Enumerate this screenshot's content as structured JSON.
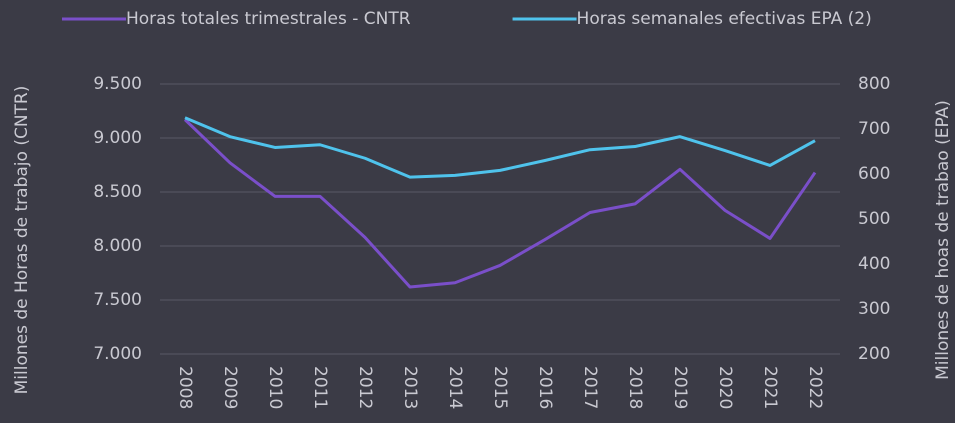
{
  "chart_data": {
    "type": "line",
    "categories": [
      "2008",
      "2009",
      "2010",
      "2011",
      "2012",
      "2013",
      "2014",
      "2015",
      "2016",
      "2017",
      "2018",
      "2019",
      "2020",
      "2021",
      "2022"
    ],
    "series": [
      {
        "name": "Horas totales trimestrales - CNTR",
        "color": "#7a4fc9",
        "values": [
          9170,
          8770,
          8460,
          8460,
          8080,
          7620,
          7660,
          7820,
          8060,
          8310,
          8390,
          8710,
          8330,
          8070,
          8680
        ]
      },
      {
        "name": "Horas semanales efectivas EPA (2)",
        "color": "#4fc3ec",
        "axis": "y2",
        "values": [
          725,
          683,
          659,
          665,
          635,
          593,
          597,
          608,
          630,
          654,
          661,
          683,
          652,
          619,
          674
        ]
      }
    ],
    "ylabel": "Millones de Horas de trabajo (CNTR)",
    "y2label": "Millones de hoas de trabao (EPA)",
    "ylim": [
      7000,
      9500
    ],
    "yticks": [
      {
        "value": 7000,
        "label": "7.000"
      },
      {
        "value": 7500,
        "label": "7.500"
      },
      {
        "value": 8000,
        "label": "8.000"
      },
      {
        "value": 8500,
        "label": "8.500"
      },
      {
        "value": 9000,
        "label": "9.000"
      },
      {
        "value": 9500,
        "label": "9.500"
      }
    ],
    "y2lim": [
      200,
      800
    ],
    "y2ticks": [
      200,
      300,
      400,
      500,
      600,
      700,
      800
    ],
    "grid": true,
    "legend": "top"
  }
}
